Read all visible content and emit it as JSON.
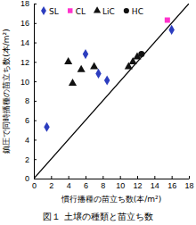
{
  "chart_data": {
    "type": "scatter",
    "title": "図１ 土壌の種類と苗立ち数",
    "x_label": "慣行播種の苗立ち数(本/m²)",
    "y_label": "鎮圧で同時播種の苗立ち数(本/m²)",
    "xlim": [
      0,
      18
    ],
    "ylim": [
      0,
      18
    ],
    "xticks": [
      0,
      2,
      4,
      6,
      8,
      10,
      12,
      14,
      16,
      18
    ],
    "yticks": [
      0,
      2,
      4,
      6,
      8,
      10,
      12,
      14,
      16,
      18
    ],
    "legend": "top",
    "reference_line": {
      "x": [
        0,
        18
      ],
      "y": [
        0,
        18
      ]
    },
    "series": [
      {
        "name": "SL",
        "color": "#2c3dbf",
        "marker": "diamond",
        "x": [
          1.5,
          6,
          7.5,
          8.5,
          16
        ],
        "values": [
          5.3,
          12.8,
          10.8,
          10.1,
          15.3
        ]
      },
      {
        "name": "CL",
        "color": "#ff33cc",
        "marker": "square",
        "x": [
          15.5
        ],
        "values": [
          16.3
        ]
      },
      {
        "name": "LiC",
        "color": "#111111",
        "marker": "triangle",
        "x": [
          4,
          4.5,
          5.5,
          7,
          11,
          11.5,
          12
        ],
        "values": [
          12,
          9.8,
          11.2,
          11.5,
          11.5,
          12,
          12.5
        ]
      },
      {
        "name": "HC",
        "color": "#111111",
        "marker": "circle",
        "x": [
          12.5
        ],
        "values": [
          12.8
        ]
      }
    ]
  }
}
